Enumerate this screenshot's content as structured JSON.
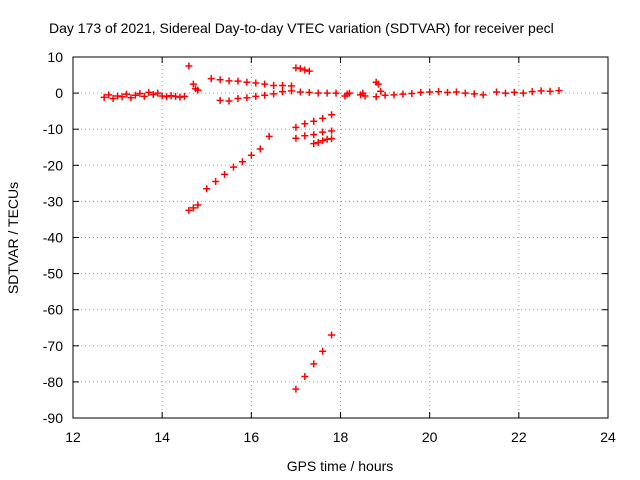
{
  "chart_data": {
    "type": "scatter",
    "title": "Day 173 of 2021, Sidereal Day-to-day VTEC variation (SDTVAR) for receiver pecl",
    "xlabel": "GPS time / hours",
    "ylabel": "SDTVAR / TECUs",
    "xlim": [
      12,
      24
    ],
    "ylim": [
      -90,
      10
    ],
    "xticks": [
      12,
      14,
      16,
      18,
      20,
      22,
      24
    ],
    "yticks": [
      -90,
      -80,
      -70,
      -60,
      -50,
      -40,
      -30,
      -20,
      -10,
      0,
      10
    ],
    "grid": true,
    "legend": "none",
    "marker": "plus",
    "color": "#ff0000",
    "series": [
      {
        "values": [
          [
            12.7,
            -1.2
          ],
          [
            12.8,
            -0.5
          ],
          [
            12.9,
            -1.5
          ],
          [
            13.0,
            -0.8
          ],
          [
            13.1,
            -1.0
          ],
          [
            13.2,
            -0.3
          ],
          [
            13.3,
            -1.3
          ],
          [
            13.4,
            -0.6
          ],
          [
            13.5,
            -0.1
          ],
          [
            13.6,
            -0.9
          ],
          [
            13.7,
            0.2
          ],
          [
            13.8,
            -0.4
          ],
          [
            13.9,
            0.0
          ],
          [
            14.0,
            -0.8
          ],
          [
            14.1,
            -1.0
          ],
          [
            14.2,
            -0.7
          ],
          [
            14.3,
            -0.9
          ],
          [
            14.4,
            -1.1
          ],
          [
            14.5,
            -0.9
          ]
        ]
      },
      {
        "values": [
          [
            14.6,
            7.5
          ],
          [
            14.7,
            2.5
          ],
          [
            14.75,
            1.2
          ],
          [
            14.8,
            0.8
          ]
        ]
      },
      {
        "values": [
          [
            14.6,
            -32.5
          ],
          [
            14.7,
            -31.8
          ],
          [
            14.8,
            -31.0
          ]
        ]
      },
      {
        "values": [
          [
            15.0,
            -26.5
          ],
          [
            15.2,
            -24.5
          ],
          [
            15.4,
            -22.5
          ],
          [
            15.6,
            -20.5
          ],
          [
            15.8,
            -19.0
          ],
          [
            16.0,
            -17.2
          ],
          [
            16.2,
            -15.5
          ],
          [
            16.4,
            -12.0
          ]
        ]
      },
      {
        "values": [
          [
            15.1,
            4.0
          ],
          [
            15.3,
            3.7
          ],
          [
            15.5,
            3.4
          ],
          [
            15.7,
            3.3
          ],
          [
            15.9,
            3.0
          ],
          [
            16.1,
            2.8
          ],
          [
            16.3,
            2.5
          ],
          [
            16.5,
            2.1
          ],
          [
            16.7,
            2.1
          ],
          [
            16.9,
            2.0
          ]
        ]
      },
      {
        "values": [
          [
            15.3,
            -2.0
          ],
          [
            15.5,
            -2.2
          ],
          [
            15.7,
            -1.5
          ],
          [
            15.9,
            -1.3
          ],
          [
            16.1,
            -0.9
          ],
          [
            16.3,
            -0.6
          ],
          [
            16.5,
            -0.2
          ],
          [
            16.7,
            0.4
          ],
          [
            16.9,
            0.6
          ],
          [
            17.1,
            0.3
          ],
          [
            17.3,
            0.2
          ],
          [
            17.5,
            0.0
          ],
          [
            17.7,
            0.0
          ],
          [
            17.9,
            0.0
          ]
        ]
      },
      {
        "values": [
          [
            17.0,
            7.0
          ],
          [
            17.1,
            6.8
          ],
          [
            17.2,
            6.4
          ],
          [
            17.3,
            6.1
          ]
        ]
      },
      {
        "values": [
          [
            17.0,
            -9.5
          ],
          [
            17.2,
            -8.5
          ],
          [
            17.4,
            -7.8
          ],
          [
            17.6,
            -7.0
          ],
          [
            17.8,
            -6.0
          ]
        ]
      },
      {
        "values": [
          [
            17.0,
            -12.5
          ],
          [
            17.2,
            -11.8
          ],
          [
            17.4,
            -11.5
          ],
          [
            17.6,
            -10.8
          ],
          [
            17.8,
            -10.5
          ]
        ]
      },
      {
        "values": [
          [
            17.4,
            -14.0
          ],
          [
            17.5,
            -13.7
          ],
          [
            17.6,
            -13.2
          ],
          [
            17.7,
            -12.8
          ],
          [
            17.8,
            -12.6
          ]
        ]
      },
      {
        "values": [
          [
            17.0,
            -82.0
          ],
          [
            17.2,
            -78.5
          ],
          [
            17.4,
            -75.0
          ],
          [
            17.6,
            -71.5
          ],
          [
            17.8,
            -67.0
          ]
        ]
      },
      {
        "values": [
          [
            18.1,
            -0.8
          ],
          [
            18.15,
            -0.3
          ],
          [
            18.2,
            0.0
          ],
          [
            18.45,
            -0.5
          ],
          [
            18.5,
            0.0
          ],
          [
            18.55,
            -0.8
          ]
        ]
      },
      {
        "values": [
          [
            18.8,
            3.0
          ],
          [
            18.85,
            2.5
          ],
          [
            18.9,
            0.5
          ]
        ]
      },
      {
        "values": [
          [
            18.8,
            -1.0
          ],
          [
            19.0,
            -0.6
          ],
          [
            19.2,
            -0.5
          ],
          [
            19.4,
            -0.3
          ],
          [
            19.6,
            -0.1
          ],
          [
            19.8,
            0.2
          ],
          [
            20.0,
            0.3
          ],
          [
            20.2,
            0.4
          ],
          [
            20.4,
            0.2
          ],
          [
            20.6,
            0.3
          ],
          [
            20.8,
            0.0
          ],
          [
            21.0,
            -0.2
          ],
          [
            21.2,
            -0.5
          ]
        ]
      },
      {
        "values": [
          [
            21.5,
            0.3
          ],
          [
            21.7,
            0.0
          ],
          [
            21.9,
            0.2
          ],
          [
            22.1,
            0.0
          ],
          [
            22.3,
            0.4
          ],
          [
            22.5,
            0.6
          ],
          [
            22.7,
            0.5
          ],
          [
            22.9,
            0.7
          ]
        ]
      }
    ]
  }
}
